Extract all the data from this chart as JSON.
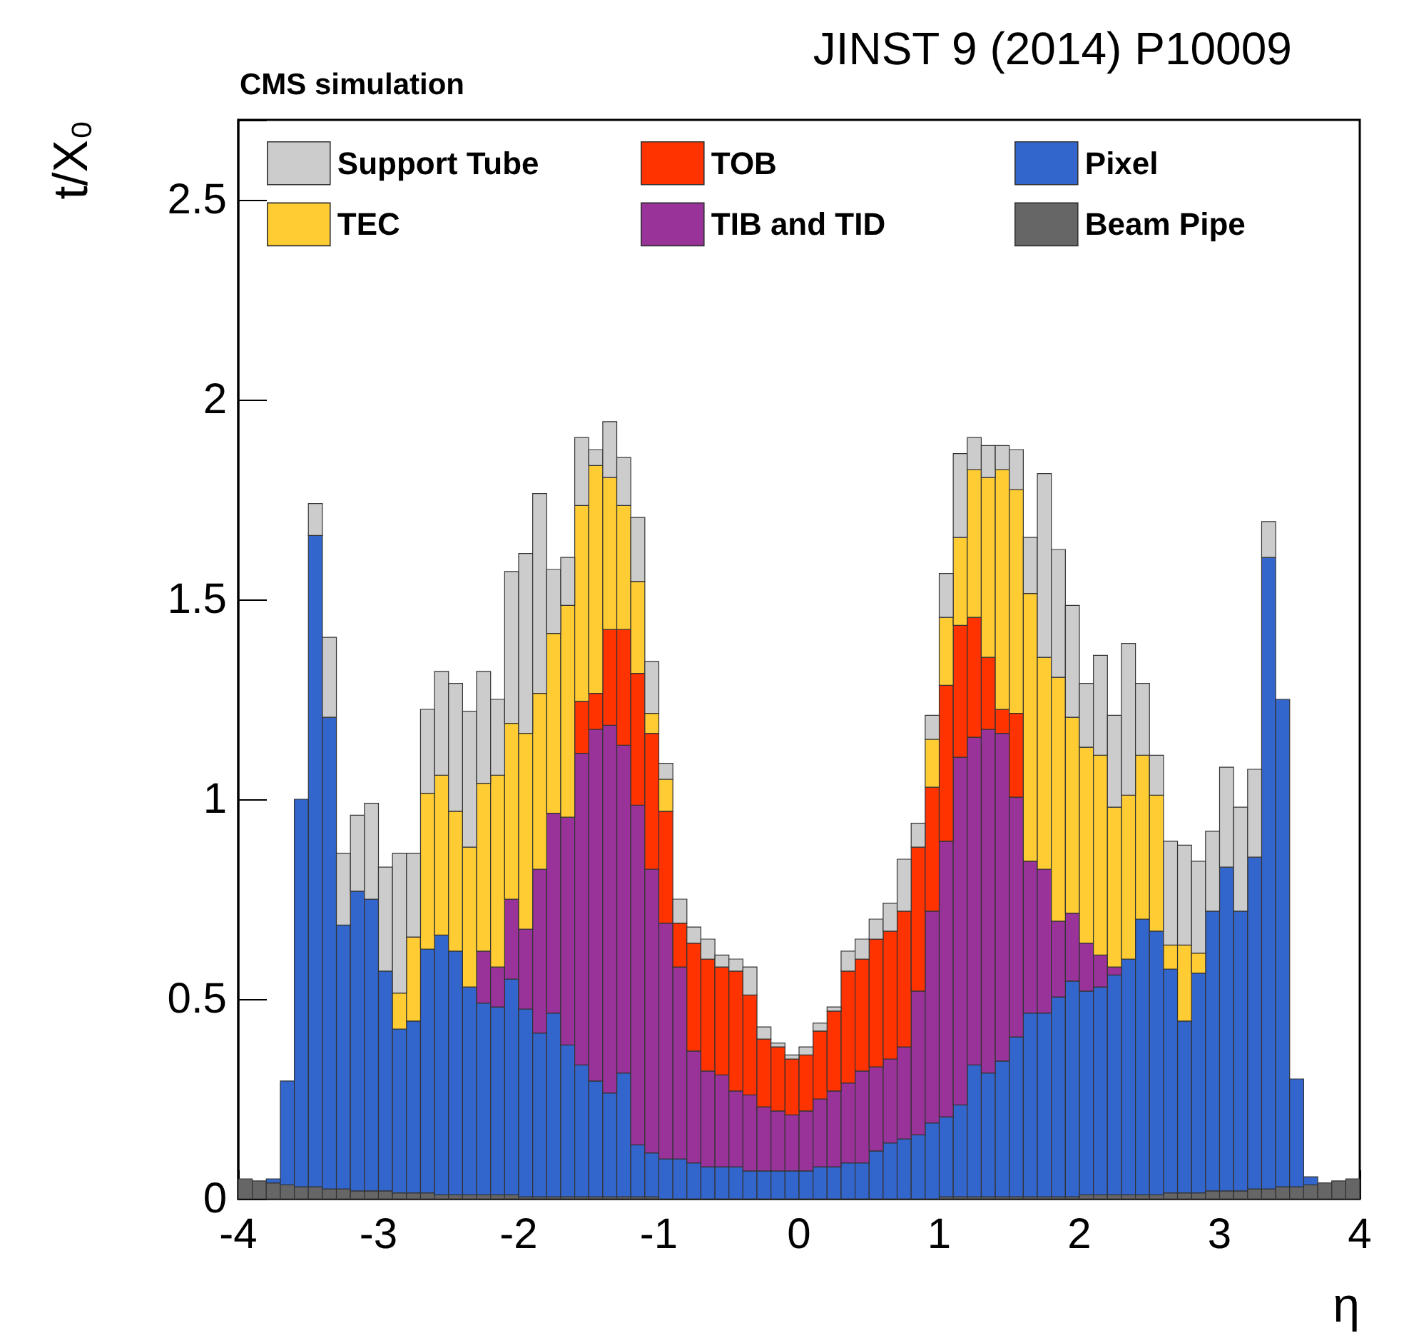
{
  "chart_data": {
    "type": "bar",
    "title": "CMS simulation",
    "xlabel": "η",
    "ylabel": "t/X₀",
    "annotations": [
      "JINST 9 (2014) P10009"
    ],
    "x": [
      -3.95,
      -3.85,
      -3.75,
      -3.65,
      -3.55,
      -3.45,
      -3.35,
      -3.25,
      -3.15,
      -3.05,
      -2.95,
      -2.85,
      -2.75,
      -2.65,
      -2.55,
      -2.45,
      -2.35,
      -2.25,
      -2.15,
      -2.05,
      -1.95,
      -1.85,
      -1.75,
      -1.65,
      -1.55,
      -1.45,
      -1.35,
      -1.25,
      -1.15,
      -1.05,
      -0.95,
      -0.85,
      -0.75,
      -0.65,
      -0.55,
      -0.45,
      -0.35,
      -0.25,
      -0.15,
      -0.05,
      0.05,
      0.15,
      0.25,
      0.35,
      0.45,
      0.55,
      0.65,
      0.75,
      0.85,
      0.95,
      1.05,
      1.15,
      1.25,
      1.35,
      1.45,
      1.55,
      1.65,
      1.75,
      1.85,
      1.95,
      2.05,
      2.15,
      2.25,
      2.35,
      2.45,
      2.55,
      2.65,
      2.75,
      2.85,
      2.95,
      3.05,
      3.15,
      3.25,
      3.35,
      3.45,
      3.55,
      3.65,
      3.75,
      3.85,
      3.95
    ],
    "stacked": true,
    "series": [
      {
        "name": "Beam Pipe",
        "color": "#666666",
        "values": [
          0.05,
          0.045,
          0.04,
          0.035,
          0.03,
          0.03,
          0.025,
          0.025,
          0.02,
          0.02,
          0.02,
          0.015,
          0.015,
          0.015,
          0.01,
          0.01,
          0.01,
          0.01,
          0.01,
          0.01,
          0.005,
          0.005,
          0.005,
          0.005,
          0.005,
          0.005,
          0.005,
          0.005,
          0.005,
          0.005,
          0,
          0,
          0,
          0,
          0,
          0,
          0,
          0,
          0,
          0,
          0,
          0,
          0,
          0,
          0,
          0,
          0,
          0,
          0,
          0,
          0.005,
          0.005,
          0.005,
          0.005,
          0.005,
          0.005,
          0.005,
          0.005,
          0.005,
          0.005,
          0.01,
          0.01,
          0.01,
          0.01,
          0.01,
          0.01,
          0.015,
          0.015,
          0.015,
          0.02,
          0.02,
          0.02,
          0.025,
          0.025,
          0.03,
          0.03,
          0.035,
          0.04,
          0.045,
          0.05
        ]
      },
      {
        "name": "Pixel",
        "color": "#3366cc",
        "values": [
          0,
          0,
          0.01,
          0.26,
          0.97,
          1.63,
          1.18,
          0.66,
          0.75,
          0.73,
          0.55,
          0.41,
          0.43,
          0.61,
          0.65,
          0.61,
          0.52,
          0.48,
          0.47,
          0.54,
          0.47,
          0.41,
          0.46,
          0.38,
          0.33,
          0.29,
          0.26,
          0.31,
          0.13,
          0.11,
          0.1,
          0.1,
          0.09,
          0.08,
          0.08,
          0.08,
          0.07,
          0.07,
          0.07,
          0.07,
          0.07,
          0.08,
          0.08,
          0.09,
          0.09,
          0.12,
          0.14,
          0.15,
          0.16,
          0.19,
          0.2,
          0.23,
          0.33,
          0.31,
          0.34,
          0.4,
          0.46,
          0.46,
          0.5,
          0.54,
          0.51,
          0.52,
          0.55,
          0.59,
          0.69,
          0.66,
          0.56,
          0.43,
          0.55,
          0.7,
          0.81,
          0.7,
          0.83,
          1.58,
          1.22,
          0.27,
          0.02,
          0,
          0,
          0
        ]
      },
      {
        "name": "TIB and TID",
        "color": "#993399",
        "values": [
          0,
          0,
          0,
          0,
          0,
          0,
          0,
          0,
          0,
          0,
          0,
          0,
          0,
          0,
          0,
          0,
          0,
          0.13,
          0.1,
          0.2,
          0.2,
          0.41,
          0.5,
          0.57,
          0.78,
          0.88,
          0.92,
          0.82,
          0.85,
          0.71,
          0.59,
          0.48,
          0.28,
          0.24,
          0.23,
          0.19,
          0.19,
          0.16,
          0.15,
          0.14,
          0.15,
          0.17,
          0.19,
          0.2,
          0.23,
          0.21,
          0.21,
          0.23,
          0.36,
          0.53,
          0.69,
          0.87,
          0.82,
          0.86,
          0.82,
          0.6,
          0.38,
          0.36,
          0.19,
          0.17,
          0.12,
          0.08,
          0.02,
          0,
          0,
          0,
          0,
          0,
          0,
          0,
          0,
          0,
          0,
          0,
          0,
          0,
          0,
          0,
          0,
          0
        ]
      },
      {
        "name": "TOB",
        "color": "#ff3300",
        "values": [
          0,
          0,
          0,
          0,
          0,
          0,
          0,
          0,
          0,
          0,
          0,
          0,
          0,
          0,
          0,
          0,
          0,
          0,
          0,
          0,
          0,
          0,
          0,
          0,
          0.13,
          0.09,
          0.24,
          0.29,
          0.33,
          0.34,
          0.28,
          0.11,
          0.27,
          0.28,
          0.27,
          0.3,
          0.25,
          0.17,
          0.16,
          0.14,
          0.14,
          0.17,
          0.2,
          0.28,
          0.28,
          0.32,
          0.32,
          0.34,
          0.36,
          0.31,
          0.39,
          0.33,
          0.3,
          0.18,
          0.06,
          0.21,
          0,
          0,
          0,
          0,
          0,
          0,
          0,
          0,
          0,
          0,
          0,
          0,
          0,
          0,
          0,
          0,
          0,
          0,
          0,
          0,
          0,
          0,
          0,
          0
        ]
      },
      {
        "name": "TEC",
        "color": "#ffcc33",
        "values": [
          0,
          0,
          0,
          0,
          0,
          0,
          0,
          0,
          0,
          0,
          0,
          0.09,
          0.21,
          0.39,
          0.4,
          0.35,
          0.35,
          0.42,
          0.48,
          0.44,
          0.49,
          0.44,
          0.45,
          0.53,
          0.49,
          0.57,
          0.38,
          0.31,
          0.23,
          0.05,
          0.08,
          0,
          0,
          0,
          0,
          0,
          0,
          0,
          0,
          0,
          0,
          0,
          0,
          0,
          0,
          0,
          0,
          0,
          0,
          0.12,
          0.17,
          0.22,
          0.37,
          0.45,
          0.6,
          0.56,
          0.67,
          0.53,
          0.61,
          0.49,
          0.49,
          0.5,
          0.4,
          0.41,
          0.41,
          0.34,
          0.06,
          0.19,
          0.05,
          0,
          0,
          0,
          0,
          0,
          0,
          0,
          0,
          0,
          0,
          0
        ]
      },
      {
        "name": "Support Tube",
        "color": "#cccccc",
        "values": [
          0,
          0,
          0,
          0,
          0,
          0.08,
          0.2,
          0.18,
          0.19,
          0.24,
          0.26,
          0.35,
          0.21,
          0.21,
          0.26,
          0.32,
          0.34,
          0.28,
          0.19,
          0.38,
          0.45,
          0.5,
          0.16,
          0.12,
          0.17,
          0.04,
          0.14,
          0.12,
          0.16,
          0.13,
          0.04,
          0.06,
          0.04,
          0.05,
          0.03,
          0.03,
          0.07,
          0.03,
          0.01,
          0.01,
          0.02,
          0.02,
          0.01,
          0.05,
          0.05,
          0.05,
          0.07,
          0.13,
          0.06,
          0.06,
          0.11,
          0.21,
          0.08,
          0.08,
          0.06,
          0.1,
          0.14,
          0.46,
          0.32,
          0.28,
          0.16,
          0.25,
          0.23,
          0.38,
          0.18,
          0.1,
          0.26,
          0.25,
          0.23,
          0.2,
          0.25,
          0.26,
          0.22,
          0.09,
          0,
          0,
          0,
          0,
          0,
          0
        ]
      }
    ],
    "xlim": [
      -4,
      4
    ],
    "xticks": [
      -4,
      -3,
      -2,
      -1,
      0,
      1,
      2,
      3,
      4
    ],
    "ylim": [
      0,
      2.7
    ],
    "yticks": [
      0,
      0.5,
      1,
      1.5,
      2,
      2.5
    ],
    "legend": "top",
    "grid": false
  }
}
